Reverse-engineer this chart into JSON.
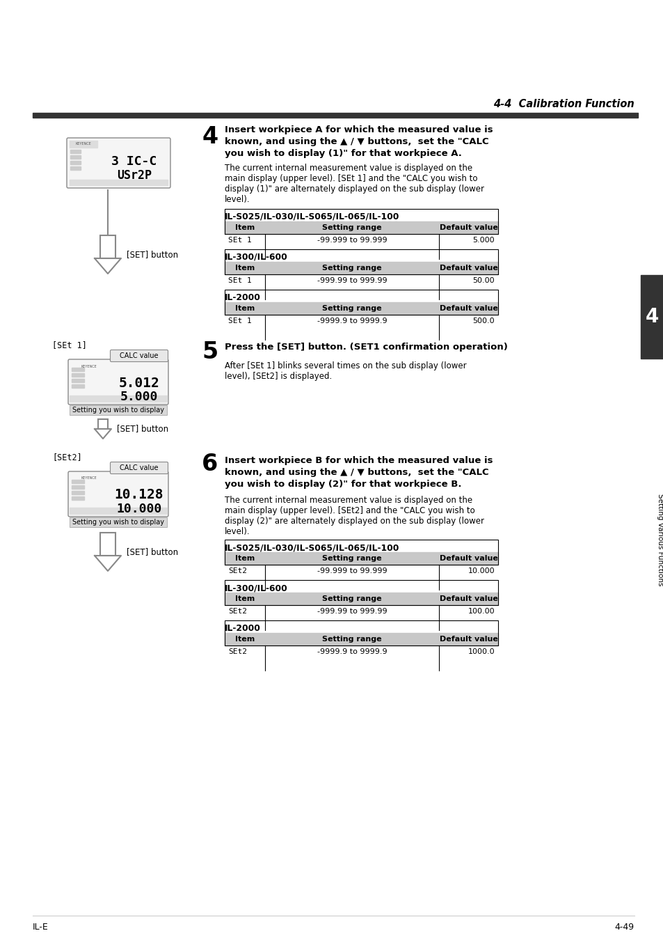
{
  "page_header_right": "4-4  Calibration Function",
  "bg_color": "#ffffff",
  "sidebar_text": "Setting Various Functions",
  "footer_left": "IL-E",
  "footer_right": "4-49",
  "step4_number": "4",
  "step4_bold_line1": "Insert workpiece A for which the measured value is",
  "step4_bold_line2": "known, and using the ▲ / ▼ buttons,  set the \"CALC",
  "step4_bold_line3": "you wish to display (1)\" for that workpiece A.",
  "step4_body_line1": "The current internal measurement value is displayed on the",
  "step4_body_line2": "main display (upper level). [SEt 1] and the \"CALC you wish to",
  "step4_body_line3": "display (1)\" are alternately displayed on the sub display (lower",
  "step4_body_line4": "level).",
  "step4_table1_title": "IL-S025/IL-030/IL-S065/IL-065/IL-100",
  "step4_table1_headers": [
    "Item",
    "Setting range",
    "Default value"
  ],
  "step4_table1_row": [
    "SEt 1",
    "-99.999 to 99.999",
    "5.000"
  ],
  "step4_table2_title": "IL-300/IL-600",
  "step4_table2_headers": [
    "Item",
    "Setting range",
    "Default value"
  ],
  "step4_table2_row": [
    "SEt 1",
    "-999.99 to 999.99",
    "50.00"
  ],
  "step4_table3_title": "IL-2000",
  "step4_table3_headers": [
    "Item",
    "Setting range",
    "Default value"
  ],
  "step4_table3_row": [
    "SEt 1",
    "-9999.9 to 9999.9",
    "500.0"
  ],
  "step5_number": "5",
  "step5_bold": "Press the [SET] button. (SET1 confirmation operation)",
  "step5_body_line1": "After [SEt 1] blinks several times on the sub display (lower",
  "step5_body_line2": "level), [SEt2] is displayed.",
  "step5_label": "[SEt 1]",
  "step5_calc_label": "CALC value",
  "step5_display_top": "5.012",
  "step5_display_bot": "5.000",
  "step5_caption": "Setting you wish to display",
  "step5_set_button": "[SET] button",
  "step6_number": "6",
  "step6_label": "[SEt2]",
  "step6_bold_line1": "Insert workpiece B for which the measured value is",
  "step6_bold_line2": "known, and using the ▲ / ▼ buttons,  set the \"CALC",
  "step6_bold_line3": "you wish to display (2)\" for that workpiece B.",
  "step6_body_line1": "The current internal measurement value is displayed on the",
  "step6_body_line2": "main display (upper level). [SEt2] and the \"CALC you wish to",
  "step6_body_line3": "display (2)\" are alternately displayed on the sub display (lower",
  "step6_body_line4": "level).",
  "step6_calc_label": "CALC value",
  "step6_display_top": "10.128",
  "step6_display_bot": "10.000",
  "step6_caption": "Setting you wish to display",
  "step6_table1_title": "IL-S025/IL-030/IL-S065/IL-065/IL-100",
  "step6_table1_headers": [
    "Item",
    "Setting range",
    "Default value"
  ],
  "step6_table1_row": [
    "SEt2",
    "-99.999 to 99.999",
    "10.000"
  ],
  "step6_table2_title": "IL-300/IL-600",
  "step6_table2_headers": [
    "Item",
    "Setting range",
    "Default value"
  ],
  "step6_table2_row": [
    "SEt2",
    "-999.99 to 999.99",
    "100.00"
  ],
  "step6_table3_title": "IL-2000",
  "step6_table3_headers": [
    "Item",
    "Setting range",
    "Default value"
  ],
  "step6_table3_row": [
    "SEt2",
    "-9999.9 to 9999.9",
    "1000.0"
  ],
  "set_button_label": "[SET] button",
  "step4_disp1": "3 IC-C",
  "step4_disp2": "USr2P",
  "table_header_bg": "#c8c8c8",
  "sidebar_block_bg": "#333333",
  "header_line_bg": "#333333"
}
